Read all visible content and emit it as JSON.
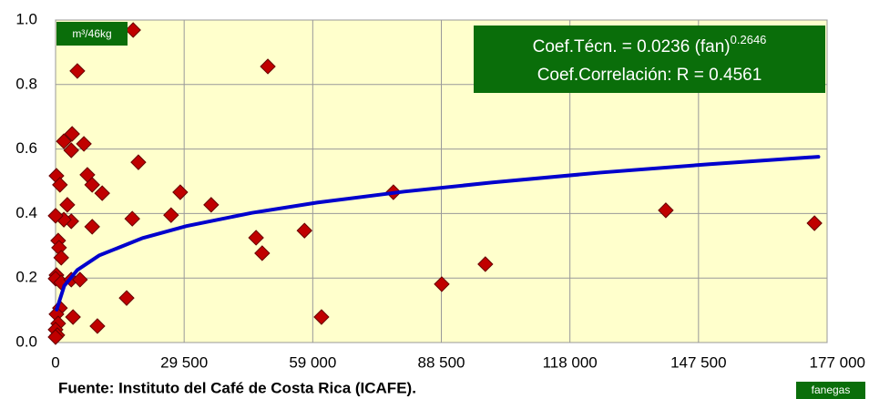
{
  "chart_data": {
    "type": "scatter",
    "units_label": "m³/46kg",
    "x_unit_label": "fanegas",
    "source": "Fuente: Instituto del Café de Costa Rica (ICAFE).",
    "annotation": {
      "line1": "Coef.Técn. = 0.0236 (fan)",
      "exponent": "0.2646",
      "line2": "Coef.Correlación:  R = 0.4561"
    },
    "xlim": [
      0,
      177000
    ],
    "xticks": [
      0,
      {
        "value": 29500,
        "label": "29 500"
      },
      {
        "value": 59000,
        "label": "59 000"
      },
      {
        "value": 88500,
        "label": "88 500"
      },
      {
        "value": 118000,
        "label": "118 000"
      },
      {
        "value": 147500,
        "label": "147 500"
      },
      {
        "value": 177000,
        "label": "177 000"
      }
    ],
    "ylim": [
      0,
      1
    ],
    "yticks": [
      {
        "value": 0,
        "label": "0.0"
      },
      0.2,
      0.4,
      0.6,
      0.8,
      {
        "value": 1,
        "label": "1.0"
      }
    ],
    "grid": true,
    "series": [
      {
        "color": "#c00000",
        "x": [
          17800,
          5000,
          48700,
          140000,
          174100,
          77500,
          98600,
          88600,
          61000,
          57100,
          46000,
          47400,
          35700,
          28600,
          26500,
          19000,
          17600,
          16300,
          10700,
          8400,
          7300,
          8400,
          6500,
          3800,
          3600,
          1900,
          2700,
          3600,
          1900,
          0,
          200,
          1000,
          600,
          800,
          1300,
          200,
          0,
          1300,
          3600,
          5600,
          4000,
          9600,
          1000,
          200,
          600,
          0,
          400,
          0
        ],
        "values": [
          0.969,
          0.842,
          0.856,
          0.41,
          0.37,
          0.466,
          0.243,
          0.181,
          0.079,
          0.347,
          0.325,
          0.277,
          0.427,
          0.466,
          0.395,
          0.559,
          0.384,
          0.138,
          0.463,
          0.489,
          0.52,
          0.359,
          0.616,
          0.647,
          0.596,
          0.624,
          0.427,
          0.376,
          0.381,
          0.393,
          0.517,
          0.489,
          0.316,
          0.294,
          0.263,
          0.209,
          0.198,
          0.186,
          0.195,
          0.195,
          0.079,
          0.051,
          0.107,
          0.088,
          0.059,
          0.04,
          0.023,
          0.017
        ]
      },
      {
        "color": "#0000cc",
        "kind": "line",
        "x": [
          250,
          2000,
          5000,
          10000,
          20000,
          30000,
          45000,
          60000,
          80000,
          100000,
          125000,
          150000,
          175000
        ],
        "values": [
          0.102,
          0.176,
          0.225,
          0.27,
          0.324,
          0.361,
          0.402,
          0.434,
          0.468,
          0.496,
          0.527,
          0.553,
          0.576
        ]
      }
    ]
  }
}
